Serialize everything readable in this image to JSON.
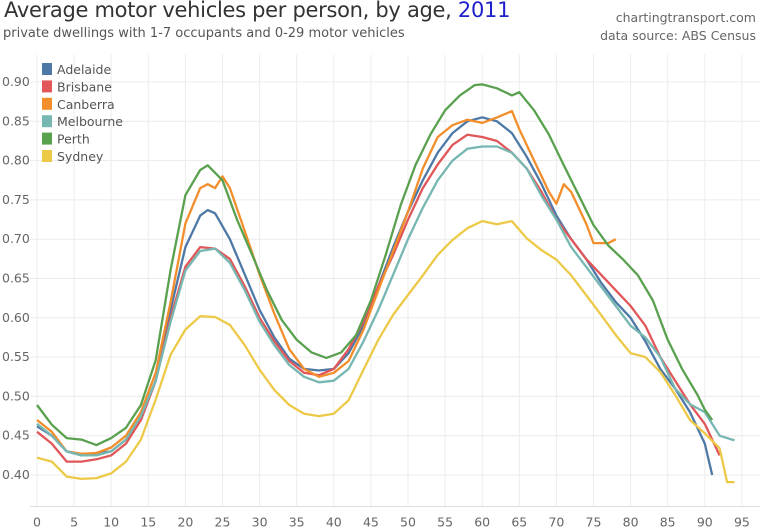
{
  "header": {
    "title": "Average motor vehicles per person, by age, ",
    "title_year": "2011",
    "subtitle": "private dwellings with 1-7 occupants and 0-29 motor vehicles",
    "credit": "chartingtransport.com",
    "source": "data source: ABS Census"
  },
  "chart_data": {
    "type": "line",
    "title": "Average motor vehicles per person, by age, 2011",
    "subtitle": "private dwellings with 1-7 occupants and 0-29 motor vehicles",
    "xlabel": "",
    "ylabel": "",
    "xlim": [
      0,
      95
    ],
    "ylim": [
      0.36,
      0.935
    ],
    "x_ticks": [
      "0",
      "5",
      "10",
      "15",
      "20",
      "25",
      "30",
      "35",
      "40",
      "45",
      "50",
      "55",
      "60",
      "65",
      "70",
      "75",
      "80",
      "85",
      "90",
      "95"
    ],
    "y_ticks": [
      "0.40",
      "0.45",
      "0.50",
      "0.55",
      "0.60",
      "0.65",
      "0.70",
      "0.75",
      "0.80",
      "0.85",
      "0.90"
    ],
    "grid": true,
    "legend_position": "top-left",
    "series": [
      {
        "name": "Adelaide",
        "color": "#4e79a7",
        "x": [
          0,
          2,
          4,
          6,
          8,
          10,
          12,
          14,
          16,
          18,
          20,
          22,
          23,
          24,
          26,
          28,
          30,
          32,
          34,
          36,
          38,
          40,
          42,
          44,
          46,
          48,
          50,
          52,
          54,
          56,
          58,
          60,
          62,
          64,
          66,
          68,
          70,
          72,
          74,
          76,
          78,
          80,
          82,
          84,
          86,
          88,
          90,
          91
        ],
        "y": [
          0.462,
          0.45,
          0.43,
          0.425,
          0.428,
          0.43,
          0.445,
          0.47,
          0.52,
          0.61,
          0.69,
          0.73,
          0.737,
          0.733,
          0.7,
          0.655,
          0.61,
          0.575,
          0.548,
          0.535,
          0.533,
          0.535,
          0.555,
          0.59,
          0.64,
          0.69,
          0.735,
          0.775,
          0.81,
          0.835,
          0.85,
          0.855,
          0.85,
          0.835,
          0.805,
          0.77,
          0.73,
          0.7,
          0.675,
          0.645,
          0.62,
          0.6,
          0.57,
          0.535,
          0.51,
          0.48,
          0.44,
          0.4
        ]
      },
      {
        "name": "Brisbane",
        "color": "#e15759",
        "x": [
          0,
          2,
          4,
          6,
          8,
          10,
          12,
          14,
          16,
          18,
          20,
          22,
          24,
          26,
          28,
          30,
          32,
          34,
          36,
          38,
          40,
          42,
          44,
          46,
          48,
          50,
          52,
          54,
          56,
          58,
          60,
          62,
          64,
          66,
          68,
          70,
          72,
          74,
          76,
          78,
          80,
          82,
          84,
          86,
          88,
          90,
          92
        ],
        "y": [
          0.455,
          0.44,
          0.417,
          0.417,
          0.42,
          0.425,
          0.44,
          0.47,
          0.52,
          0.6,
          0.665,
          0.69,
          0.688,
          0.675,
          0.64,
          0.6,
          0.57,
          0.545,
          0.53,
          0.527,
          0.535,
          0.56,
          0.595,
          0.64,
          0.68,
          0.725,
          0.765,
          0.795,
          0.82,
          0.833,
          0.83,
          0.825,
          0.81,
          0.79,
          0.76,
          0.725,
          0.7,
          0.675,
          0.655,
          0.635,
          0.615,
          0.59,
          0.55,
          0.52,
          0.49,
          0.465,
          0.425
        ]
      },
      {
        "name": "Canberra",
        "color": "#f28e2b",
        "x": [
          0,
          2,
          4,
          6,
          8,
          10,
          12,
          14,
          16,
          18,
          20,
          22,
          23,
          24,
          25,
          26,
          28,
          30,
          32,
          34,
          36,
          38,
          40,
          42,
          44,
          46,
          48,
          50,
          52,
          54,
          56,
          58,
          60,
          62,
          64,
          65,
          67,
          69,
          70,
          71,
          72,
          74,
          75,
          77,
          78
        ],
        "y": [
          0.47,
          0.455,
          0.43,
          0.427,
          0.428,
          0.435,
          0.45,
          0.48,
          0.53,
          0.62,
          0.72,
          0.765,
          0.77,
          0.765,
          0.78,
          0.765,
          0.71,
          0.655,
          0.605,
          0.56,
          0.535,
          0.525,
          0.53,
          0.545,
          0.585,
          0.635,
          0.685,
          0.735,
          0.79,
          0.83,
          0.845,
          0.852,
          0.848,
          0.855,
          0.863,
          0.84,
          0.8,
          0.76,
          0.745,
          0.77,
          0.76,
          0.72,
          0.695,
          0.695,
          0.7
        ]
      },
      {
        "name": "Melbourne",
        "color": "#76b7b2",
        "x": [
          0,
          2,
          4,
          6,
          8,
          10,
          12,
          14,
          16,
          18,
          20,
          22,
          24,
          26,
          28,
          30,
          32,
          34,
          36,
          38,
          40,
          42,
          44,
          46,
          48,
          50,
          52,
          54,
          56,
          58,
          60,
          62,
          64,
          66,
          68,
          70,
          72,
          74,
          76,
          78,
          80,
          82,
          84,
          86,
          88,
          90,
          92,
          94
        ],
        "y": [
          0.465,
          0.45,
          0.43,
          0.425,
          0.425,
          0.43,
          0.445,
          0.475,
          0.52,
          0.595,
          0.66,
          0.685,
          0.688,
          0.67,
          0.635,
          0.595,
          0.565,
          0.54,
          0.525,
          0.518,
          0.52,
          0.535,
          0.57,
          0.61,
          0.655,
          0.7,
          0.74,
          0.775,
          0.8,
          0.815,
          0.818,
          0.818,
          0.81,
          0.79,
          0.755,
          0.725,
          0.69,
          0.665,
          0.64,
          0.615,
          0.59,
          0.575,
          0.55,
          0.51,
          0.49,
          0.48,
          0.45,
          0.444
        ]
      },
      {
        "name": "Perth",
        "color": "#59a14f",
        "x": [
          0,
          2,
          4,
          6,
          8,
          10,
          12,
          14,
          16,
          18,
          20,
          22,
          23,
          25,
          27,
          29,
          31,
          33,
          35,
          37,
          39,
          41,
          43,
          45,
          47,
          49,
          51,
          53,
          55,
          57,
          59,
          60,
          62,
          64,
          65,
          67,
          69,
          71,
          73,
          75,
          77,
          79,
          81,
          83,
          85,
          87,
          89,
          90,
          91
        ],
        "y": [
          0.489,
          0.464,
          0.447,
          0.445,
          0.438,
          0.447,
          0.46,
          0.489,
          0.546,
          0.661,
          0.756,
          0.788,
          0.794,
          0.775,
          0.724,
          0.68,
          0.635,
          0.597,
          0.572,
          0.556,
          0.549,
          0.556,
          0.578,
          0.622,
          0.68,
          0.743,
          0.794,
          0.833,
          0.864,
          0.883,
          0.896,
          0.897,
          0.892,
          0.883,
          0.887,
          0.864,
          0.833,
          0.794,
          0.756,
          0.718,
          0.692,
          0.674,
          0.654,
          0.622,
          0.572,
          0.534,
          0.502,
          0.483,
          0.47
        ]
      },
      {
        "name": "Sydney",
        "color": "#edc948",
        "x": [
          0,
          2,
          4,
          6,
          8,
          10,
          12,
          14,
          16,
          18,
          20,
          22,
          24,
          26,
          28,
          30,
          32,
          34,
          36,
          38,
          40,
          42,
          44,
          46,
          48,
          50,
          52,
          54,
          56,
          58,
          60,
          62,
          64,
          66,
          68,
          70,
          72,
          74,
          76,
          78,
          80,
          82,
          84,
          86,
          88,
          90,
          92,
          93,
          94
        ],
        "y": [
          0.422,
          0.417,
          0.398,
          0.395,
          0.396,
          0.402,
          0.417,
          0.445,
          0.496,
          0.553,
          0.585,
          0.602,
          0.601,
          0.591,
          0.565,
          0.534,
          0.508,
          0.489,
          0.478,
          0.475,
          0.478,
          0.495,
          0.534,
          0.572,
          0.604,
          0.629,
          0.654,
          0.68,
          0.699,
          0.714,
          0.723,
          0.719,
          0.723,
          0.701,
          0.686,
          0.674,
          0.654,
          0.629,
          0.604,
          0.578,
          0.555,
          0.55,
          0.531,
          0.502,
          0.47,
          0.453,
          0.434,
          0.391,
          0.391
        ]
      }
    ]
  }
}
